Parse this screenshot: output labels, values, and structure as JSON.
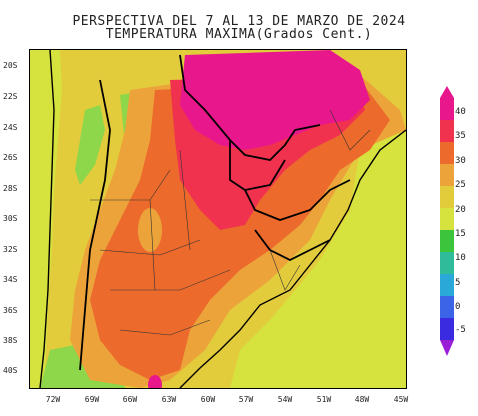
{
  "title": {
    "line1": "PERSPECTIVA DEL 7 AL 13 DE MARZO DE 2024",
    "line2": "TEMPERATURA MAXIMA(Grados Cent.)"
  },
  "lat_labels": [
    "20S",
    "22S",
    "24S",
    "26S",
    "28S",
    "30S",
    "32S",
    "34S",
    "36S",
    "38S",
    "40S"
  ],
  "lon_labels": [
    "72W",
    "69W",
    "66W",
    "63W",
    "60W",
    "57W",
    "54W",
    "51W",
    "48W",
    "45W"
  ],
  "colorbar": {
    "labels": [
      "40",
      "35",
      "30",
      "25",
      "20",
      "15",
      "10",
      "5",
      "0",
      "-5"
    ],
    "colors": [
      "#e8178c",
      "#f0324f",
      "#ec6a2c",
      "#eca43a",
      "#e2cc3c",
      "#d6e23e",
      "#8ed64a",
      "#3cc43c",
      "#2ebc9a",
      "#2aa8d8",
      "#3c64e6",
      "#3a2ae0",
      "#9a1ed6"
    ]
  },
  "legend_colors": {
    "t40_plus": "#e8178c",
    "t35_40": "#f0324f",
    "t30_35": "#ec6a2c",
    "t25_30": "#eca43a",
    "t20_25": "#e2cc3c",
    "t15_20": "#d6e23e",
    "t10_15": "#8ed64a"
  }
}
